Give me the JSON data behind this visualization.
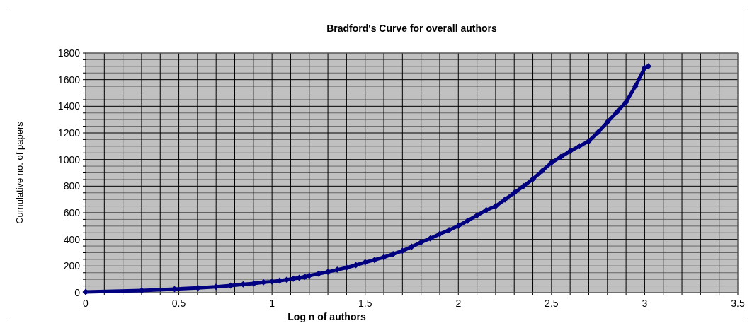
{
  "chart_data": {
    "type": "line",
    "title": "Bradford's Curve for overall authors",
    "xlabel": "Log n of authors",
    "ylabel": "Cumulative no. of papers",
    "xlim": [
      0,
      3.5
    ],
    "xticks": [
      0,
      {
        "value": 0.1,
        "label": null
      },
      {
        "value": 0.2,
        "label": null
      },
      {
        "value": 0.3,
        "label": null
      },
      {
        "value": 0.4,
        "label": null
      },
      0.5,
      {
        "value": 0.6,
        "label": null
      },
      {
        "value": 0.7,
        "label": null
      },
      {
        "value": 0.8,
        "label": null
      },
      {
        "value": 0.9,
        "label": null
      },
      1,
      {
        "value": 1.1,
        "label": null
      },
      {
        "value": 1.2,
        "label": null
      },
      {
        "value": 1.3,
        "label": null
      },
      {
        "value": 1.4,
        "label": null
      },
      1.5,
      {
        "value": 1.6,
        "label": null
      },
      {
        "value": 1.7,
        "label": null
      },
      {
        "value": 1.8,
        "label": null
      },
      {
        "value": 1.9,
        "label": null
      },
      2,
      {
        "value": 2.1,
        "label": null
      },
      {
        "value": 2.2,
        "label": null
      },
      {
        "value": 2.3,
        "label": null
      },
      {
        "value": 2.4,
        "label": null
      },
      2.5,
      {
        "value": 2.6,
        "label": null
      },
      {
        "value": 2.7,
        "label": null
      },
      {
        "value": 2.8,
        "label": null
      },
      {
        "value": 2.9,
        "label": null
      },
      3,
      {
        "value": 3.1,
        "label": null
      },
      {
        "value": 3.2,
        "label": null
      },
      {
        "value": 3.3,
        "label": null
      },
      {
        "value": 3.4,
        "label": null
      },
      3.5
    ],
    "ylim": [
      0,
      1800
    ],
    "yticks": [
      0,
      {
        "value": 50,
        "label": null
      },
      {
        "value": 100,
        "label": null
      },
      {
        "value": 150,
        "label": null
      },
      200,
      {
        "value": 250,
        "label": null
      },
      {
        "value": 300,
        "label": null
      },
      {
        "value": 350,
        "label": null
      },
      400,
      {
        "value": 450,
        "label": null
      },
      {
        "value": 500,
        "label": null
      },
      {
        "value": 550,
        "label": null
      },
      600,
      {
        "value": 650,
        "label": null
      },
      {
        "value": 700,
        "label": null
      },
      {
        "value": 750,
        "label": null
      },
      800,
      {
        "value": 850,
        "label": null
      },
      {
        "value": 900,
        "label": null
      },
      {
        "value": 950,
        "label": null
      },
      1000,
      {
        "value": 1050,
        "label": null
      },
      {
        "value": 1100,
        "label": null
      },
      {
        "value": 1150,
        "label": null
      },
      1200,
      {
        "value": 1250,
        "label": null
      },
      {
        "value": 1300,
        "label": null
      },
      {
        "value": 1350,
        "label": null
      },
      1400,
      {
        "value": 1450,
        "label": null
      },
      {
        "value": 1500,
        "label": null
      },
      {
        "value": 1550,
        "label": null
      },
      1600,
      {
        "value": 1650,
        "label": null
      },
      {
        "value": 1700,
        "label": null
      },
      {
        "value": 1750,
        "label": null
      },
      1800
    ],
    "grid": true,
    "marker": "diamond",
    "line_style": "solid",
    "series": [
      {
        "color": "#000080",
        "x": [
          0,
          0.301,
          0.477,
          0.602,
          0.699,
          0.778,
          0.845,
          0.903,
          0.954,
          1,
          1.041,
          1.079,
          1.114,
          1.146,
          1.176,
          1.2,
          1.25,
          1.3,
          1.35,
          1.4,
          1.45,
          1.5,
          1.55,
          1.6,
          1.65,
          1.7,
          1.75,
          1.8,
          1.85,
          1.9,
          1.95,
          2,
          2.05,
          2.1,
          2.15,
          2.2,
          2.25,
          2.3,
          2.35,
          2.4,
          2.45,
          2.5,
          2.55,
          2.6,
          2.65,
          2.7,
          2.75,
          2.8,
          2.85,
          2.9,
          2.95,
          3,
          3.02
        ],
        "values": [
          5,
          16,
          27,
          36,
          44,
          53,
          62,
          69,
          78,
          83,
          90,
          97,
          105,
          112,
          120,
          128,
          142,
          156,
          172,
          188,
          207,
          228,
          246,
          266,
          290,
          314,
          345,
          378,
          408,
          441,
          470,
          502,
          540,
          580,
          620,
          649,
          700,
          750,
          800,
          853,
          915,
          977,
          1020,
          1063,
          1100,
          1138,
          1205,
          1282,
          1355,
          1431,
          1550,
          1688,
          1700
        ]
      }
    ]
  }
}
